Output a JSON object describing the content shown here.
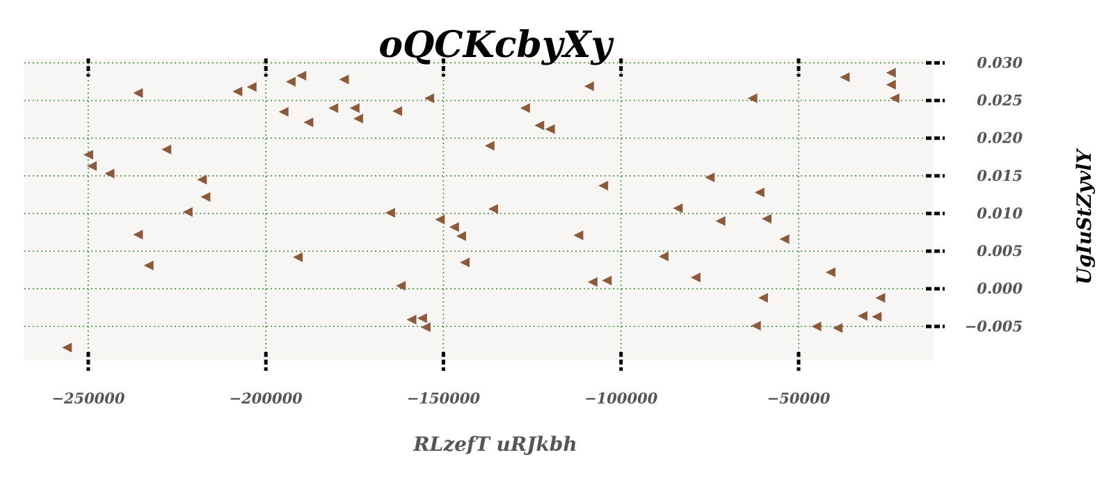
{
  "chart_data": {
    "type": "scatter",
    "title": "oQCKcbyXy",
    "xlabel": "RLzefT uRJkbh",
    "ylabel": "UgIuStZyvlY",
    "xlim": [
      -268000,
      -12000
    ],
    "ylim": [
      -0.0095,
      0.0305
    ],
    "x_ticks": [
      -250000,
      -200000,
      -150000,
      -100000,
      -50000
    ],
    "x_tick_labels": [
      "−250000",
      "−200000",
      "−150000",
      "−100000",
      "−50000"
    ],
    "y_ticks": [
      -0.005,
      0.0,
      0.005,
      0.01,
      0.015,
      0.02,
      0.025,
      0.03
    ],
    "y_tick_labels": [
      "−0.005",
      "0.000",
      "0.005",
      "0.010",
      "0.015",
      "0.020",
      "0.025",
      "0.030"
    ],
    "grid": true,
    "y_axis_position": "right",
    "marker": "triangle-left",
    "colors": {
      "marker": "#8b5a3c",
      "grid": "#2e8b2e",
      "plot_background": "#f8f6f4",
      "ticks": "#000000"
    },
    "series": [
      {
        "points": [
          [
            -256000,
            -0.0078
          ],
          [
            -250000,
            0.0178
          ],
          [
            -249000,
            0.0163
          ],
          [
            -244000,
            0.0153
          ],
          [
            -236000,
            0.026
          ],
          [
            -236000,
            0.0072
          ],
          [
            -233000,
            0.0031
          ],
          [
            -228000,
            0.0185
          ],
          [
            -222000,
            0.0102
          ],
          [
            -218000,
            0.0145
          ],
          [
            -217000,
            0.0122
          ],
          [
            -208000,
            0.0262
          ],
          [
            -204000,
            0.0268
          ],
          [
            -195000,
            0.0235
          ],
          [
            -193000,
            0.0275
          ],
          [
            -190000,
            0.0283
          ],
          [
            -191000,
            0.0042
          ],
          [
            -188000,
            0.0221
          ],
          [
            -181000,
            0.024
          ],
          [
            -178000,
            0.0278
          ],
          [
            -175000,
            0.024
          ],
          [
            -174000,
            0.0226
          ],
          [
            -165000,
            0.0101
          ],
          [
            -163000,
            0.0236
          ],
          [
            -162000,
            0.0004
          ],
          [
            -159000,
            -0.0041
          ],
          [
            -156000,
            -0.0039
          ],
          [
            -155000,
            -0.0051
          ],
          [
            -154000,
            0.0253
          ],
          [
            -151000,
            0.0092
          ],
          [
            -147000,
            0.0082
          ],
          [
            -145000,
            0.007
          ],
          [
            -144000,
            0.0035
          ],
          [
            -137000,
            0.019
          ],
          [
            -136000,
            0.0106
          ],
          [
            -127000,
            0.024
          ],
          [
            -123000,
            0.0217
          ],
          [
            -120000,
            0.0212
          ],
          [
            -112000,
            0.0071
          ],
          [
            -109000,
            0.0269
          ],
          [
            -108000,
            0.0009
          ],
          [
            -105000,
            0.0137
          ],
          [
            -104000,
            0.0011
          ],
          [
            -88000,
            0.0043
          ],
          [
            -84000,
            0.0107
          ],
          [
            -79000,
            0.0015
          ],
          [
            -75000,
            0.0148
          ],
          [
            -72000,
            0.009
          ],
          [
            -63000,
            0.0253
          ],
          [
            -62000,
            -0.0049
          ],
          [
            -61000,
            0.0128
          ],
          [
            -60000,
            -0.0012
          ],
          [
            -59000,
            0.0093
          ],
          [
            -54000,
            0.0066
          ],
          [
            -45000,
            -0.005
          ],
          [
            -41000,
            0.0022
          ],
          [
            -39000,
            -0.0052
          ],
          [
            -37000,
            0.0281
          ],
          [
            -32000,
            -0.0036
          ],
          [
            -28000,
            -0.0037
          ],
          [
            -27000,
            -0.0012
          ],
          [
            -24000,
            0.0287
          ],
          [
            -24000,
            0.0271
          ],
          [
            -23000,
            0.0253
          ]
        ]
      }
    ]
  }
}
